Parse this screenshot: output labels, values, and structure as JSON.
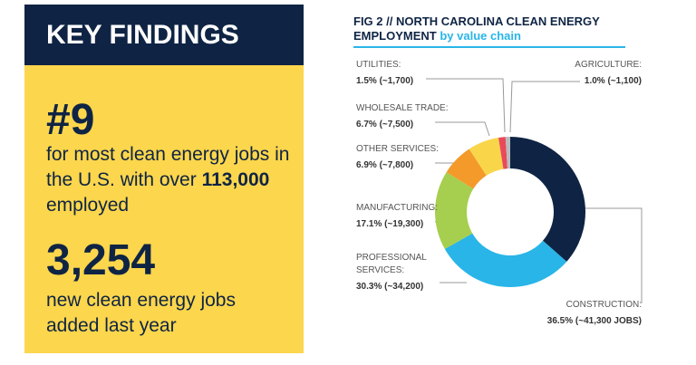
{
  "key_findings": {
    "title": "KEY FINDINGS",
    "stat_1": "#9",
    "stat_1_text": "for most clean energy jobs in the U.S. with over",
    "stat_1_bold": "113,000",
    "stat_1_tail": "employed",
    "stat_2": "3,254",
    "stat_2_text": "new clean energy jobs added last year"
  },
  "chart_data": {
    "type": "donut",
    "title": "FIG 2 // NORTH CAROLINA CLEAN ENERGY EMPLOYMENT",
    "title_suffix": "by value chain",
    "categories": [
      "CONSTRUCTION:",
      "PROFESSIONAL SERVICES:",
      "MANUFACTURING:",
      "OTHER SERVICES:",
      "WHOLESALE TRADE:",
      "UTILITIES:",
      "AGRICULTURE:"
    ],
    "values": [
      36.5,
      30.3,
      17.1,
      6.9,
      6.7,
      1.5,
      1.0
    ],
    "value_labels": [
      "36.5% (~41,300 JOBS)",
      "30.3% (~34,200)",
      "17.1% (~19,300)",
      "6.9% (~7,800)",
      "6.7% (~7,500)",
      "1.5% (~1,700)",
      "1.0% (~1,100)"
    ],
    "colors": [
      "#0f2444",
      "#29b5e8",
      "#a6cf4f",
      "#f39a2b",
      "#f9d54a",
      "#e94a5a",
      "#b9bcbf"
    ]
  }
}
